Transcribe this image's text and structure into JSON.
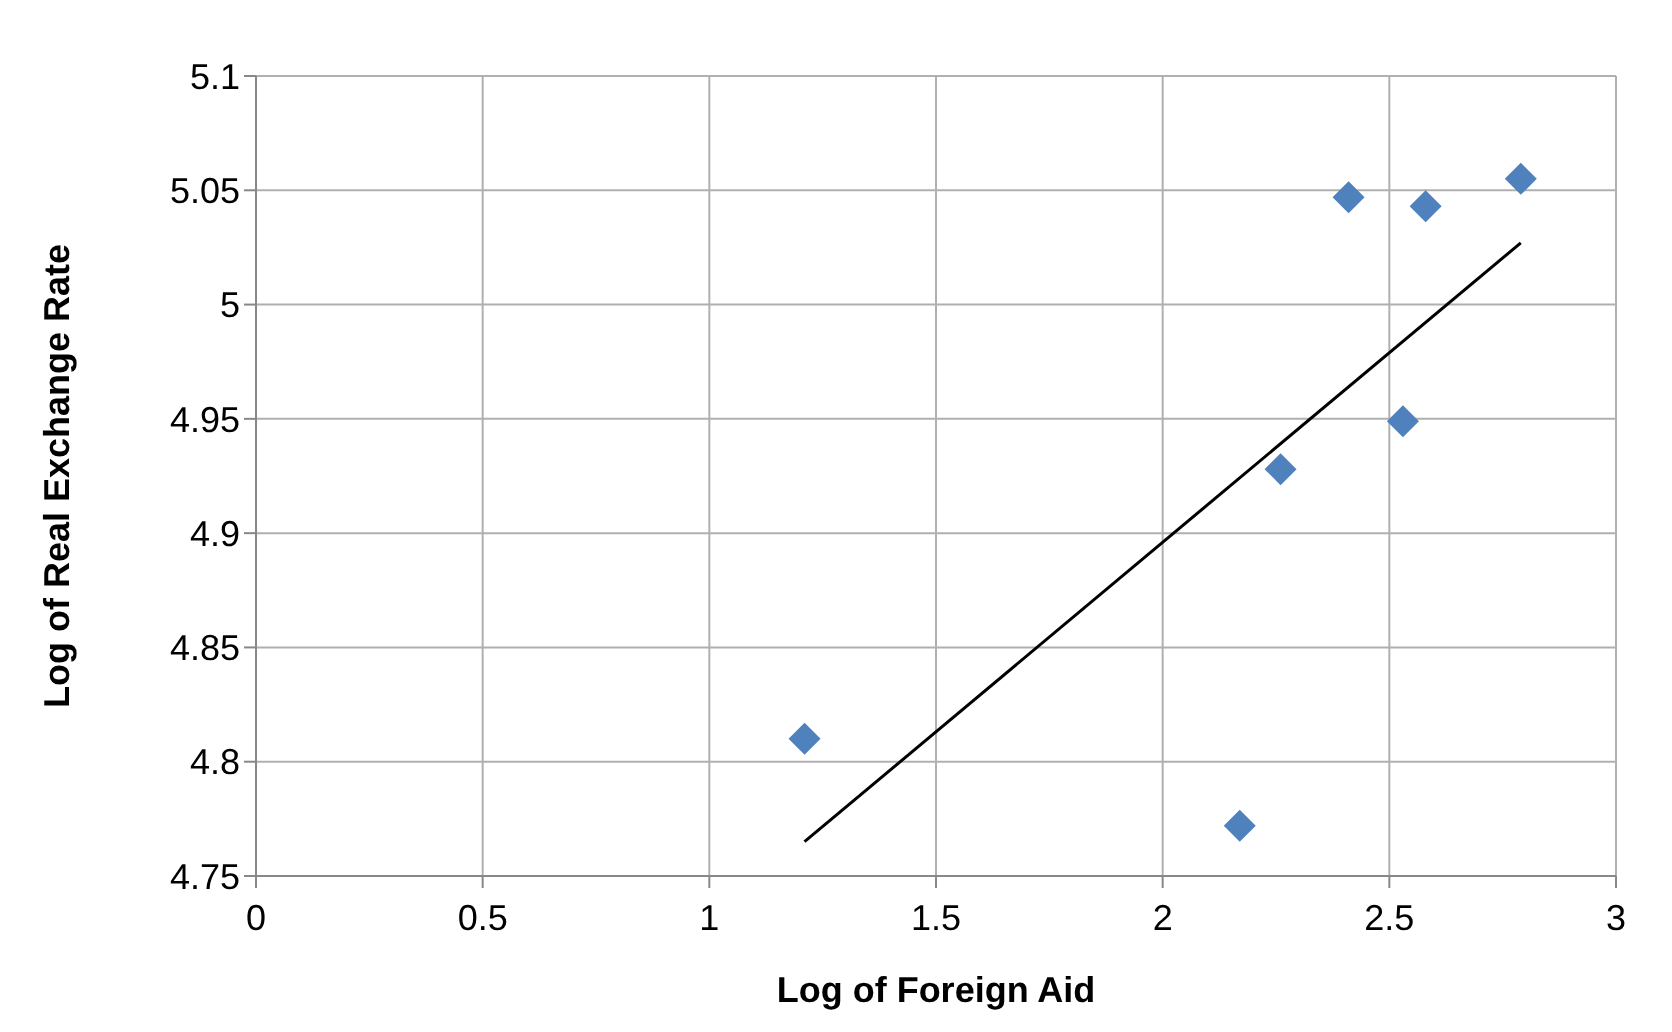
{
  "chart_data": {
    "type": "scatter",
    "xlabel": "Log of Foreign Aid",
    "ylabel": "Log of Real Exchange Rate",
    "series": [
      {
        "color": "#4f81bd",
        "x": [
          1.21,
          2.17,
          2.26,
          2.41,
          2.53,
          2.58,
          2.79
        ],
        "values": [
          4.81,
          4.772,
          4.928,
          5.047,
          4.949,
          5.043,
          5.055
        ],
        "marker": "diamond"
      },
      {
        "type": "line",
        "color": "#000000",
        "x": [
          1.21,
          2.79
        ],
        "values": [
          4.765,
          5.027
        ],
        "marker": "none"
      }
    ],
    "xlim": [
      0,
      3
    ],
    "xticks": [
      0,
      0.5,
      1,
      1.5,
      2,
      2.5,
      3
    ],
    "ylim": [
      4.75,
      5.1
    ],
    "yticks": [
      4.75,
      4.8,
      4.85,
      4.9,
      4.95,
      5,
      5.05,
      5.1
    ],
    "grid": true,
    "legend": false
  }
}
